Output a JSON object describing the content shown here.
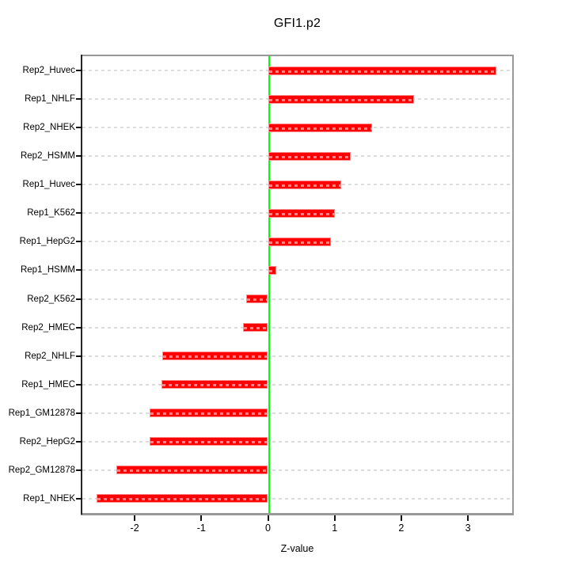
{
  "title": "GFI1.p2",
  "xlabel": "Z-value",
  "chart_data": {
    "type": "bar",
    "orientation": "horizontal",
    "title": "GFI1.p2",
    "xlabel": "Z-value",
    "categories": [
      "Rep2_Huvec",
      "Rep1_NHLF",
      "Rep2_NHEK",
      "Rep2_HSMM",
      "Rep1_Huvec",
      "Rep1_K562",
      "Rep1_HepG2",
      "Rep1_HSMM",
      "Rep2_K562",
      "Rep2_HMEC",
      "Rep2_NHLF",
      "Rep1_HMEC",
      "Rep1_GM12878",
      "Rep2_HepG2",
      "Rep2_GM12878",
      "Rep1_NHEK"
    ],
    "values": [
      3.43,
      2.19,
      1.56,
      1.24,
      1.1,
      1.0,
      0.94,
      0.12,
      -0.33,
      -0.37,
      -1.59,
      -1.6,
      -1.78,
      -1.77,
      -2.27,
      -2.57
    ],
    "x_ticks": [
      -2,
      -1,
      0,
      1,
      2,
      3
    ],
    "xlim": [
      -2.8,
      3.66
    ],
    "grid": true,
    "legend": "none",
    "colors": {
      "bar_fill": "#ff0000",
      "bar_border": "#ff8d8d",
      "zero_line": "#00ff00",
      "gridline": "#dcdcdc",
      "box_border": "#999999",
      "axis_text": "#000000"
    }
  }
}
